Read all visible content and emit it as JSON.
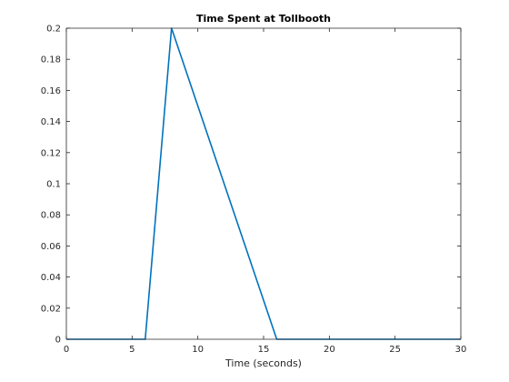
{
  "chart_data": {
    "type": "line",
    "title": "Time Spent at Tollbooth",
    "xlabel": "Time (seconds)",
    "ylabel": "",
    "xlim": [
      0,
      30
    ],
    "ylim": [
      0,
      0.2
    ],
    "xticks": [
      0,
      5,
      10,
      15,
      20,
      25,
      30
    ],
    "xtick_labels": [
      "0",
      "5",
      "10",
      "15",
      "20",
      "25",
      "30"
    ],
    "yticks": [
      0,
      0.02,
      0.04,
      0.06,
      0.08,
      0.1,
      0.12,
      0.14,
      0.16,
      0.18,
      0.2
    ],
    "ytick_labels": [
      "0",
      "0.02",
      "0.04",
      "0.06",
      "0.08",
      "0.1",
      "0.12",
      "0.14",
      "0.16",
      "0.18",
      "0.2"
    ],
    "grid": false,
    "series": [
      {
        "color": "#0072BD",
        "x": [
          0,
          6,
          8,
          16,
          30
        ],
        "y": [
          0,
          0,
          0.2,
          0,
          0
        ]
      }
    ]
  }
}
